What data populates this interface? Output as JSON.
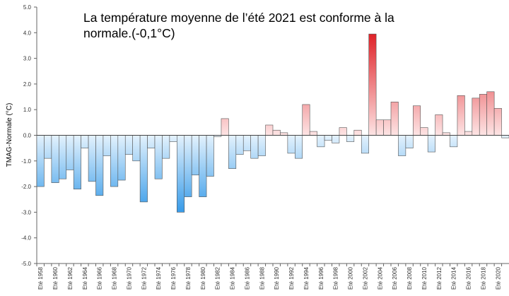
{
  "chart_data": {
    "type": "bar",
    "title": "La température moyenne de l’été 2021 est conforme à la normale.(-0,1°C)",
    "y_label": "TMAG-Normale (°C)",
    "categories": [
      "Eté 1958",
      null,
      "Eté 1960",
      null,
      "Eté 1962",
      null,
      "Eté 1964",
      null,
      "Eté 1966",
      null,
      "Eté 1968",
      null,
      "Eté 1970",
      null,
      "Eté 1972",
      null,
      "Eté 1974",
      null,
      "Eté 1976",
      null,
      "Eté 1978",
      null,
      "Eté 1980",
      null,
      "Eté 1982",
      null,
      "Eté 1984",
      null,
      "Eté 1986",
      null,
      "Eté 1988",
      null,
      "Eté 1990",
      null,
      "Eté 1992",
      null,
      "Eté 1994",
      null,
      "Eté 1996",
      null,
      "Eté 1998",
      null,
      "Eté 2000",
      null,
      "Eté 2002",
      null,
      "Eté 2004",
      null,
      "Eté 2006",
      null,
      "Eté 2008",
      null,
      "Eté 2010",
      null,
      "Eté 2012",
      null,
      "Eté 2014",
      null,
      "Eté 2016",
      null,
      "Eté 2018",
      null,
      "Eté 2020",
      null
    ],
    "values": [
      -2.0,
      -0.9,
      -1.85,
      -1.7,
      -1.35,
      -2.1,
      -0.5,
      -1.8,
      -2.35,
      -0.8,
      -2.0,
      -1.75,
      -0.75,
      -1.0,
      -2.6,
      -0.5,
      -1.7,
      -0.9,
      -0.25,
      -3.0,
      -2.4,
      -1.55,
      -2.4,
      -1.6,
      -0.05,
      0.65,
      -1.3,
      -0.75,
      -0.6,
      -0.9,
      -0.8,
      0.4,
      0.2,
      0.1,
      -0.7,
      -0.9,
      1.2,
      0.15,
      -0.45,
      -0.2,
      -0.3,
      0.3,
      -0.25,
      0.2,
      -0.7,
      3.95,
      0.6,
      0.6,
      1.3,
      -0.8,
      -0.5,
      1.15,
      0.3,
      -0.65,
      0.8,
      0.1,
      -0.45,
      1.55,
      0.15,
      1.45,
      1.6,
      1.7,
      1.05,
      -0.1
    ],
    "colors": {
      "positive": [
        "#fde4e4",
        "#e0242a"
      ],
      "negative": [
        "#e4f2fd",
        "#3b9de9"
      ]
    },
    "ylim": [
      -5,
      5
    ],
    "yticks": [
      {
        "value": -5,
        "label": "-5.0"
      },
      {
        "value": -4,
        "label": "-4.0"
      },
      {
        "value": -3,
        "label": "-3.0"
      },
      {
        "value": -2,
        "label": "-2.0"
      },
      {
        "value": -1,
        "label": "-1.0"
      },
      {
        "value": 0,
        "label": "0.0"
      },
      {
        "value": 1,
        "label": "1.0"
      },
      {
        "value": 2,
        "label": "2.0"
      },
      {
        "value": 3,
        "label": "3.0"
      },
      {
        "value": 4,
        "label": "4.0"
      },
      {
        "value": 5,
        "label": "5.0"
      }
    ],
    "grid": false
  }
}
